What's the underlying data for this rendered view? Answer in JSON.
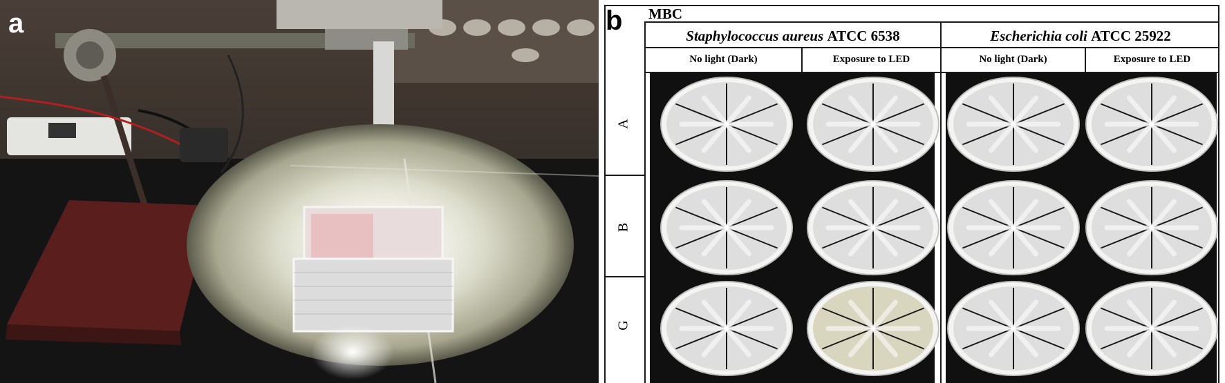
{
  "panel_a": {
    "label": "a"
  },
  "panel_b": {
    "label": "b",
    "title": "MBC",
    "organisms": [
      {
        "species": "Staphylococcus aureus",
        "strain": "ATCC 6538"
      },
      {
        "species": "Escherichia coli",
        "strain": "ATCC 25922"
      }
    ],
    "conditions": [
      "No light (Dark)",
      "Exposure to LED",
      "No light (Dark)",
      "Exposure to LED"
    ],
    "rows": [
      "A",
      "B",
      "G"
    ]
  },
  "colors": {
    "plate_background": "#101010",
    "agar": "#dcdcd6",
    "ink": "#1a1a1a"
  }
}
